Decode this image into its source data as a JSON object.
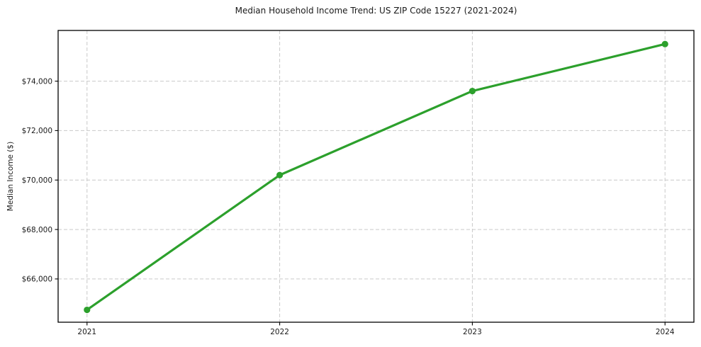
{
  "figure": {
    "background_color": "#ffffff"
  },
  "chart_data": {
    "type": "line",
    "title": "Median Household Income Trend: US ZIP Code 15227 (2021-2024)",
    "xlabel": "",
    "ylabel": "Median Income ($)",
    "x": [
      2021,
      2022,
      2023,
      2024
    ],
    "x_tick_labels": [
      "2021",
      "2022",
      "2023",
      "2024"
    ],
    "values": [
      64750,
      70200,
      73600,
      75500
    ],
    "y_ticks": [
      66000,
      68000,
      70000,
      72000,
      74000
    ],
    "y_tick_labels": [
      "$66,000",
      "$68,000",
      "$70,000",
      "$72,000",
      "$74,000"
    ],
    "xlim": [
      2020.85,
      2024.15
    ],
    "ylim": [
      64250,
      76050
    ],
    "grid": true,
    "grid_line_style": "dashed",
    "grid_color": "#c9c9c9",
    "axis_color": "#000000",
    "tick_label_color": "#1a1a1a",
    "line_color": "#2ca02c",
    "marker": "circle",
    "legend_position": "none"
  }
}
